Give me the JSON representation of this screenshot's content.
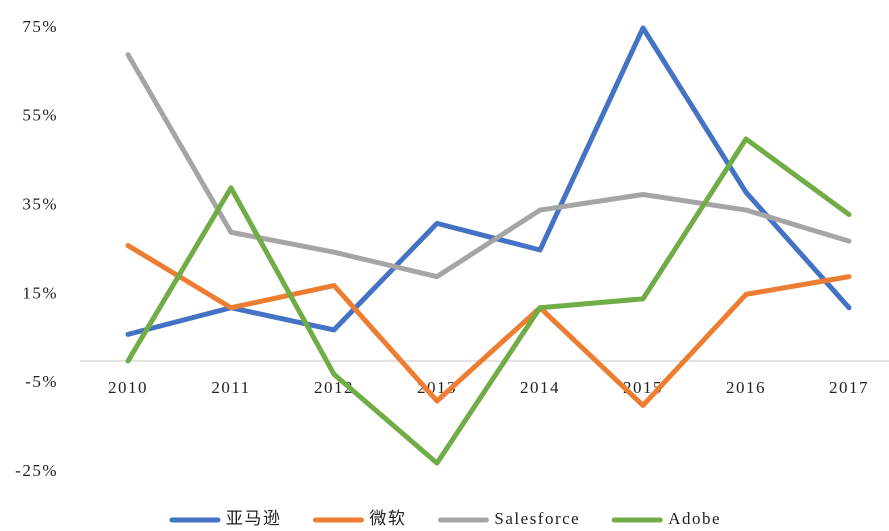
{
  "chart_data": {
    "type": "line",
    "categories": [
      "2010",
      "2011",
      "2012",
      "2013",
      "2014",
      "2015",
      "2016",
      "2017"
    ],
    "series": [
      {
        "name": "亚马逊",
        "color": "#4472c4",
        "values": [
          6,
          12,
          7,
          31,
          25,
          75,
          38,
          12
        ]
      },
      {
        "name": "微软",
        "color": "#ed7d31",
        "values": [
          26,
          12,
          17,
          -9,
          12,
          -10,
          15,
          19
        ]
      },
      {
        "name": "Salesforce",
        "color": "#a5a5a5",
        "values": [
          69,
          29,
          24.5,
          19,
          34,
          37.5,
          34,
          27
        ]
      },
      {
        "name": "Adobe",
        "color": "#70ad47",
        "values": [
          0,
          39,
          -3,
          -23,
          12,
          14,
          50,
          33
        ]
      }
    ],
    "ylim": [
      -25,
      75
    ],
    "yticks": [
      {
        "value": -25,
        "label": "-25%"
      },
      {
        "value": -5,
        "label": "-5%"
      },
      {
        "value": 15,
        "label": "15%"
      },
      {
        "value": 35,
        "label": "35%"
      },
      {
        "value": 55,
        "label": "55%"
      },
      {
        "value": 75,
        "label": "75%"
      }
    ],
    "legend": "bottom"
  }
}
